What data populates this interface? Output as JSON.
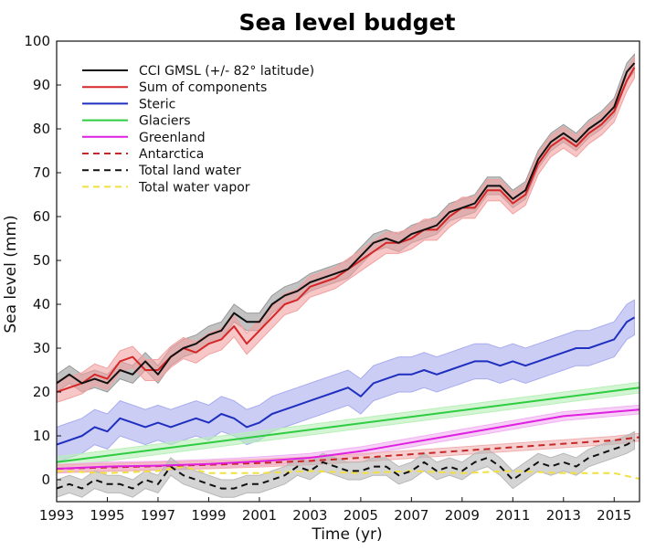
{
  "chart_data": {
    "type": "line",
    "title": "Sea level budget",
    "xlabel": "Time (yr)",
    "ylabel": "Sea  level (mm)",
    "xlim": [
      1993,
      2016
    ],
    "ylim": [
      -5,
      100
    ],
    "xticks": [
      1993,
      1995,
      1997,
      1999,
      2001,
      2003,
      2005,
      2007,
      2009,
      2011,
      2013,
      2015
    ],
    "yticks": [
      0,
      10,
      20,
      30,
      40,
      50,
      60,
      70,
      80,
      90,
      100
    ],
    "grid": false,
    "legend": "top-left",
    "series": [
      {
        "name": "CCI GMSL (+/- 82° latitude)",
        "color": "#111111",
        "style": "solid",
        "band": "#9a9a9a",
        "x": [
          1993.0,
          1993.5,
          1994.0,
          1994.5,
          1995.0,
          1995.5,
          1996.0,
          1996.5,
          1997.0,
          1997.5,
          1998.0,
          1998.5,
          1999.0,
          1999.5,
          2000.0,
          2000.5,
          2001.0,
          2001.5,
          2002.0,
          2002.5,
          2003.0,
          2003.5,
          2004.0,
          2004.5,
          2005.0,
          2005.5,
          2006.0,
          2006.5,
          2007.0,
          2007.5,
          2008.0,
          2008.5,
          2009.0,
          2009.5,
          2010.0,
          2010.5,
          2011.0,
          2011.5,
          2012.0,
          2012.5,
          2013.0,
          2013.5,
          2014.0,
          2014.5,
          2015.0,
          2015.5,
          2015.8
        ],
        "y": [
          22,
          24,
          22,
          23,
          22,
          25,
          24,
          27,
          24,
          28,
          30,
          31,
          33,
          34,
          38,
          36,
          36,
          40,
          42,
          43,
          45,
          46,
          47,
          48,
          51,
          54,
          55,
          54,
          56,
          57,
          58,
          61,
          62,
          63,
          67,
          67,
          64,
          66,
          73,
          77,
          79,
          77,
          80,
          82,
          85,
          93,
          95
        ]
      },
      {
        "name": "Sum of components",
        "color": "#d62728",
        "style": "solid",
        "band": "#f2a0a0",
        "x": [
          1993.0,
          1993.5,
          1994.0,
          1994.5,
          1995.0,
          1995.5,
          1996.0,
          1996.5,
          1997.0,
          1997.5,
          1998.0,
          1998.5,
          1999.0,
          1999.5,
          2000.0,
          2000.5,
          2001.0,
          2001.5,
          2002.0,
          2002.5,
          2003.0,
          2003.5,
          2004.0,
          2004.5,
          2005.0,
          2005.5,
          2006.0,
          2006.5,
          2007.0,
          2007.5,
          2008.0,
          2008.5,
          2009.0,
          2009.5,
          2010.0,
          2010.5,
          2011.0,
          2011.5,
          2012.0,
          2012.5,
          2013.0,
          2013.5,
          2014.0,
          2014.5,
          2015.0,
          2015.5,
          2015.8
        ],
        "y": [
          20,
          21,
          22,
          24,
          23,
          27,
          28,
          25,
          25,
          28,
          30,
          29,
          31,
          32,
          35,
          31,
          34,
          37,
          40,
          41,
          44,
          45,
          46,
          48,
          50,
          52,
          54,
          54,
          55,
          57,
          57,
          60,
          62,
          62,
          66,
          66,
          63,
          65,
          72,
          76,
          78,
          76,
          79,
          81,
          84,
          91,
          94
        ]
      },
      {
        "name": "Steric",
        "color": "#1f2fbf",
        "style": "solid",
        "band": "#a9acee",
        "x": [
          1993.0,
          1993.5,
          1994.0,
          1994.5,
          1995.0,
          1995.5,
          1996.0,
          1996.5,
          1997.0,
          1997.5,
          1998.0,
          1998.5,
          1999.0,
          1999.5,
          2000.0,
          2000.5,
          2001.0,
          2001.5,
          2002.0,
          2002.5,
          2003.0,
          2003.5,
          2004.0,
          2004.5,
          2005.0,
          2005.5,
          2006.0,
          2006.5,
          2007.0,
          2007.5,
          2008.0,
          2008.5,
          2009.0,
          2009.5,
          2010.0,
          2010.5,
          2011.0,
          2011.5,
          2012.0,
          2012.5,
          2013.0,
          2013.5,
          2014.0,
          2014.5,
          2015.0,
          2015.5,
          2015.8
        ],
        "y": [
          8,
          9,
          10,
          12,
          11,
          14,
          13,
          12,
          13,
          12,
          13,
          14,
          13,
          15,
          14,
          12,
          13,
          15,
          16,
          17,
          18,
          19,
          20,
          21,
          19,
          22,
          23,
          24,
          24,
          25,
          24,
          25,
          26,
          27,
          27,
          26,
          27,
          26,
          27,
          28,
          29,
          30,
          30,
          31,
          32,
          36,
          37
        ]
      },
      {
        "name": "Glaciers",
        "color": "#2ecc40",
        "style": "solid",
        "band": "#b8efb8",
        "x": [
          1993,
          2016
        ],
        "y": [
          4,
          21
        ]
      },
      {
        "name": "Greenland",
        "color": "#e020e0",
        "style": "solid",
        "band": "#f2b0f2",
        "x": [
          1993.0,
          1995.0,
          1997.0,
          1999.0,
          2001.0,
          2003.0,
          2005.0,
          2007.0,
          2009.0,
          2011.0,
          2013.0,
          2015.0,
          2016.0
        ],
        "y": [
          2.5,
          3,
          3.2,
          3.6,
          4.2,
          5,
          6.5,
          8.5,
          10.5,
          12.5,
          14.5,
          15.5,
          16
        ]
      },
      {
        "name": "Antarctica",
        "color": "#c62828",
        "style": "dashed",
        "band": "#f0b0b0",
        "x": [
          1993.0,
          1995.0,
          1997.0,
          1999.0,
          2001.0,
          2003.0,
          2005.0,
          2007.0,
          2009.0,
          2011.0,
          2013.0,
          2015.0,
          2016.0
        ],
        "y": [
          2.5,
          2.8,
          3.1,
          3.4,
          3.8,
          4.3,
          5,
          5.8,
          6.6,
          7.4,
          8.2,
          9,
          9.7
        ]
      },
      {
        "name": "Total land water",
        "color": "#111111",
        "style": "dashed",
        "band": "#b8b8b8",
        "x": [
          1993.0,
          1993.5,
          1994.0,
          1994.5,
          1995.0,
          1995.5,
          1996.0,
          1996.5,
          1997.0,
          1997.5,
          1998.0,
          1998.5,
          1999.0,
          1999.5,
          2000.0,
          2000.5,
          2001.0,
          2001.5,
          2002.0,
          2002.5,
          2003.0,
          2003.5,
          2004.0,
          2004.5,
          2005.0,
          2005.5,
          2006.0,
          2006.5,
          2007.0,
          2007.5,
          2008.0,
          2008.5,
          2009.0,
          2009.5,
          2010.0,
          2010.5,
          2011.0,
          2011.5,
          2012.0,
          2012.5,
          2013.0,
          2013.5,
          2014.0,
          2014.5,
          2015.0,
          2015.5,
          2015.8
        ],
        "y": [
          -2,
          -1,
          -2,
          0,
          -1,
          -1,
          -2,
          0,
          -1,
          3,
          1,
          0,
          -1,
          -2,
          -2,
          -1,
          -1,
          0,
          1,
          3,
          2,
          4,
          3,
          2,
          2,
          3,
          3,
          1,
          2,
          4,
          2,
          3,
          2,
          4,
          5,
          3,
          0,
          2,
          4,
          3,
          4,
          3,
          5,
          6,
          7,
          8,
          9
        ]
      },
      {
        "name": "Total water vapor",
        "color": "#f0e040",
        "style": "dashed",
        "band": null,
        "x": [
          1993.0,
          1995.0,
          1997.0,
          1998.0,
          1999.0,
          2001.0,
          2003.0,
          2005.0,
          2007.0,
          2009.0,
          2011.0,
          2013.0,
          2015.0,
          2016.0
        ],
        "y": [
          2,
          1.5,
          2,
          3,
          1.5,
          1.5,
          2,
          1.5,
          2,
          1.5,
          2,
          1.5,
          1.5,
          0.2
        ]
      }
    ]
  }
}
